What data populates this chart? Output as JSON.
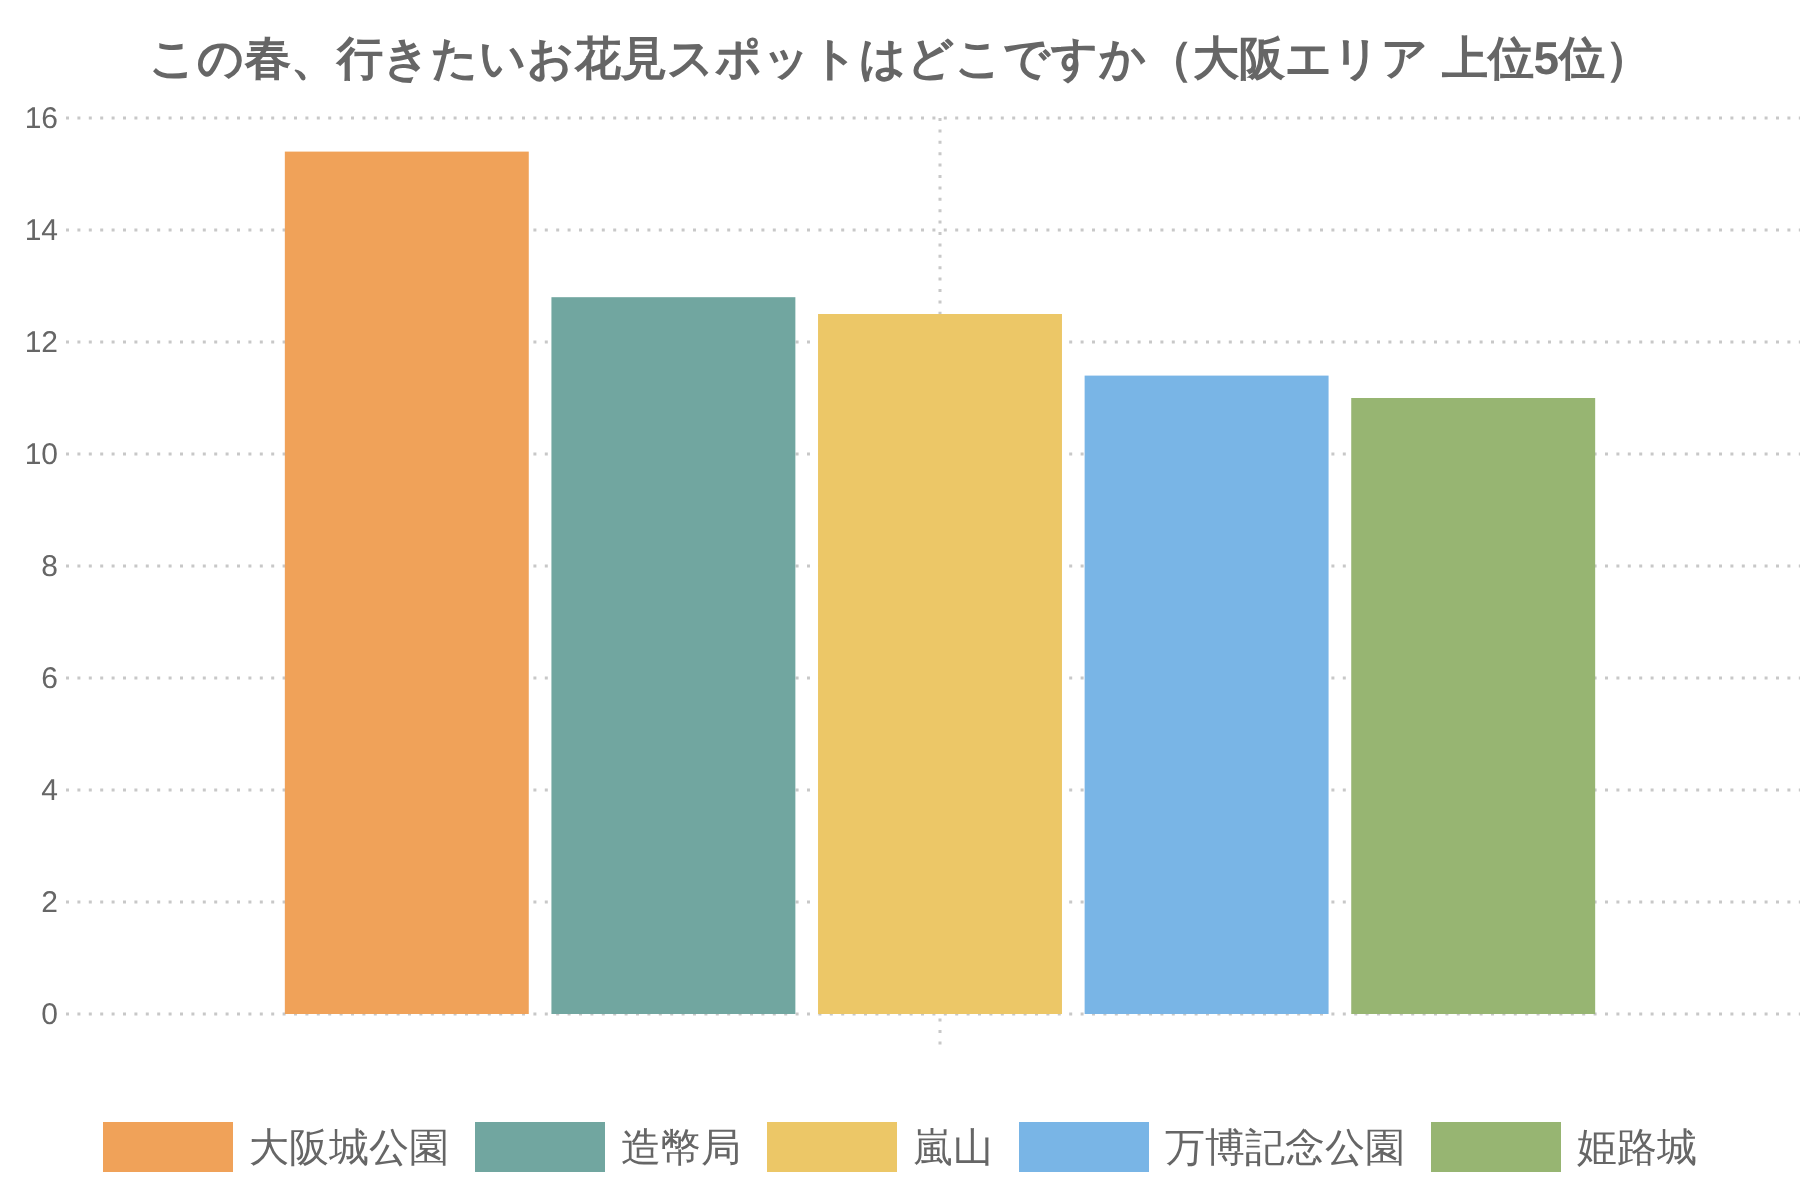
{
  "chart_data": {
    "type": "bar",
    "title": "この春、行きたいお花見スポットはどこですか（大阪エリア 上位5位）",
    "categories": [
      null
    ],
    "series": [
      {
        "name": "大阪城公園",
        "color": "#f0a259",
        "values": [
          15.4
        ]
      },
      {
        "name": "造幣局",
        "color": "#71a6a0",
        "values": [
          12.8
        ]
      },
      {
        "name": "嵐山",
        "color": "#ecc767",
        "values": [
          12.5
        ]
      },
      {
        "name": "万博記念公園",
        "color": "#79b5e6",
        "values": [
          11.4
        ]
      },
      {
        "name": "姫路城",
        "color": "#97b572",
        "values": [
          11.0
        ]
      }
    ],
    "ylim": [
      0,
      16
    ],
    "yticks": [
      0,
      2,
      4,
      6,
      8,
      10,
      12,
      14,
      16
    ],
    "grid": true,
    "legend": "bottom"
  }
}
